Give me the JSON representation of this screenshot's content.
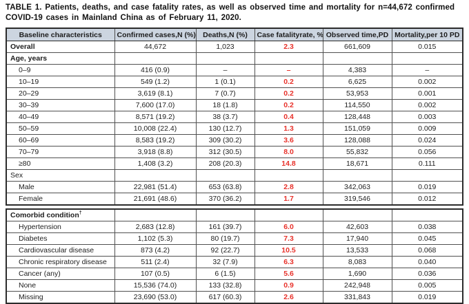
{
  "title": "TABLE 1.  Patients, deaths, and case fatality rates, as well as observed time and mortality for n=44,672 confirmed COVID-19 cases in Mainland China as of February 11, 2020.",
  "colors": {
    "header_bg": "#ccd5e0",
    "accent_red": "#e8312a",
    "border": "#4f4f4f",
    "text": "#1d1d1d"
  },
  "table": {
    "columns": [
      "Baseline characteristics",
      "Confirmed cases,N (%)",
      "Deaths,N (%)",
      "Case fatalityrate, %",
      "Observed time,PD",
      "Mortality,per 10 PD"
    ],
    "red_column_index": 2,
    "sections": [
      {
        "name": "main",
        "rows": [
          {
            "label": "Overall",
            "style": "bold",
            "values": [
              "44,672",
              "1,023",
              "2.3",
              "661,609",
              "0.015"
            ]
          },
          {
            "label": "Age, years",
            "style": "bold",
            "values": [
              "",
              "",
              "",
              "",
              ""
            ]
          },
          {
            "label": "0–9",
            "style": "sub",
            "values": [
              "416 (0.9)",
              "–",
              "–",
              "4,383",
              "–"
            ]
          },
          {
            "label": "10–19",
            "style": "sub",
            "values": [
              "549 (1.2)",
              "1 (0.1)",
              "0.2",
              "6,625",
              "0.002"
            ]
          },
          {
            "label": "20–29",
            "style": "sub",
            "values": [
              "3,619 (8.1)",
              "7 (0.7)",
              "0.2",
              "53,953",
              "0.001"
            ]
          },
          {
            "label": "30–39",
            "style": "sub",
            "values": [
              "7,600 (17.0)",
              "18 (1.8)",
              "0.2",
              "114,550",
              "0.002"
            ]
          },
          {
            "label": "40–49",
            "style": "sub",
            "values": [
              "8,571 (19.2)",
              "38 (3.7)",
              "0.4",
              "128,448",
              "0.003"
            ]
          },
          {
            "label": "50–59",
            "style": "sub",
            "values": [
              "10,008 (22.4)",
              "130 (12.7)",
              "1.3",
              "151,059",
              "0.009"
            ]
          },
          {
            "label": "60–69",
            "style": "sub",
            "values": [
              "8,583 (19.2)",
              "309 (30.2)",
              "3.6",
              "128,088",
              "0.024"
            ]
          },
          {
            "label": "70–79",
            "style": "sub",
            "values": [
              "3,918 (8.8)",
              "312 (30.5)",
              "8.0",
              "55,832",
              "0.056"
            ]
          },
          {
            "label": "≥80",
            "style": "sub",
            "values": [
              "1,408 (3.2)",
              "208 (20.3)",
              "14.8",
              "18,671",
              "0.111"
            ]
          },
          {
            "label": "Sex",
            "style": "plain",
            "values": [
              "",
              "",
              "",
              "",
              ""
            ]
          },
          {
            "label": "Male",
            "style": "sub",
            "values": [
              "22,981 (51.4)",
              "653 (63.8)",
              "2.8",
              "342,063",
              "0.019"
            ]
          },
          {
            "label": "Female",
            "style": "sub",
            "values": [
              "21,691 (48.6)",
              "370 (36.2)",
              "1.7",
              "319,546",
              "0.012"
            ]
          }
        ]
      },
      {
        "name": "comorbid",
        "rows": [
          {
            "label": "Comorbid condition",
            "sup": "†",
            "style": "bold",
            "values": [
              "",
              "",
              "",
              "",
              ""
            ]
          },
          {
            "label": "Hypertension",
            "style": "sub",
            "values": [
              "2,683 (12.8)",
              "161 (39.7)",
              "6.0",
              "42,603",
              "0.038"
            ]
          },
          {
            "label": "Diabetes",
            "style": "sub",
            "values": [
              "1,102 (5.3)",
              "80 (19.7)",
              "7.3",
              "17,940",
              "0.045"
            ]
          },
          {
            "label": "Cardiovascular disease",
            "style": "sub",
            "values": [
              "873 (4.2)",
              "92 (22.7)",
              "10.5",
              "13,533",
              "0.068"
            ]
          },
          {
            "label": "Chronic respiratory disease",
            "style": "sub",
            "values": [
              "511 (2.4)",
              "32 (7.9)",
              "6.3",
              "8,083",
              "0.040"
            ]
          },
          {
            "label": "Cancer (any)",
            "style": "sub",
            "values": [
              "107 (0.5)",
              "6 (1.5)",
              "5.6",
              "1,690",
              "0.036"
            ]
          },
          {
            "label": "None",
            "style": "sub",
            "values": [
              "15,536 (74.0)",
              "133 (32.8)",
              "0.9",
              "242,948",
              "0.005"
            ]
          },
          {
            "label": "Missing",
            "style": "sub",
            "values": [
              "23,690 (53.0)",
              "617 (60.3)",
              "2.6",
              "331,843",
              "0.019"
            ]
          }
        ]
      }
    ]
  }
}
